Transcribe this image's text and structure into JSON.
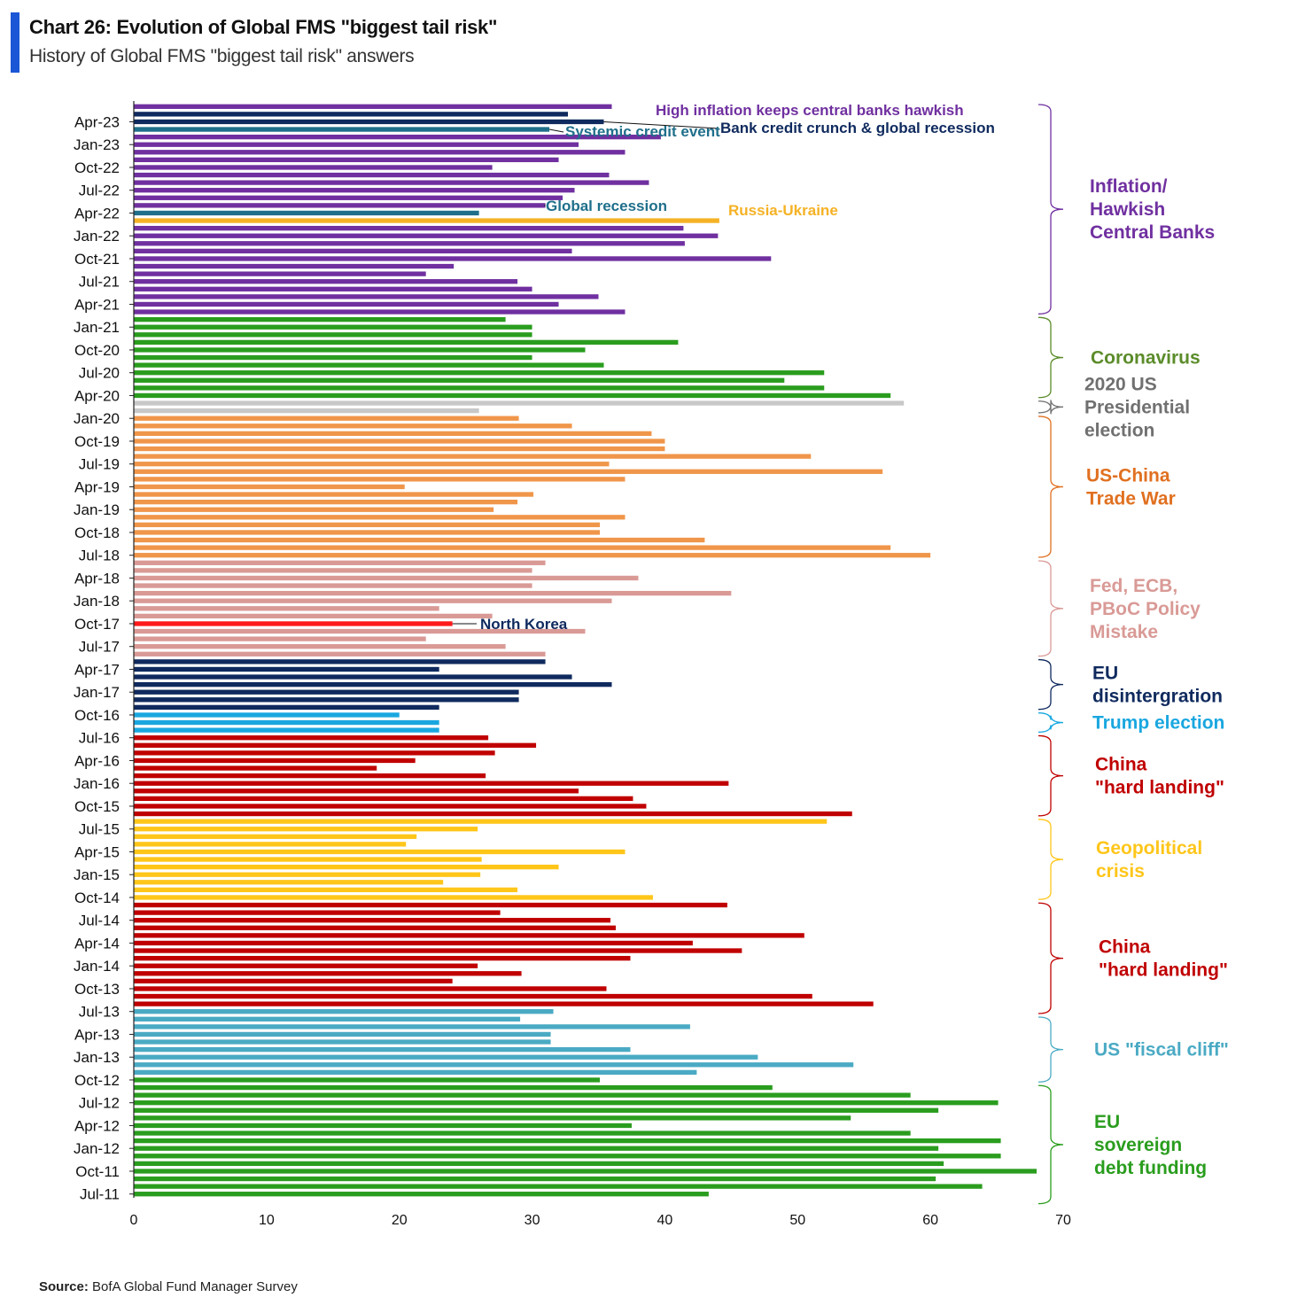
{
  "header": {
    "title": "Chart 26: Evolution of Global FMS \"biggest tail risk\"",
    "subtitle": "History of Global FMS \"biggest tail risk\" answers"
  },
  "footer": {
    "source_label": "Source:",
    "source_text": " BofA Global Fund Manager Survey"
  },
  "colors": {
    "inflation": "#7030a0",
    "navy": "#0f2a5e",
    "teal": "#1f6f8b",
    "russia": "#f5b225",
    "covid": "#2a9d1e",
    "election": "#c8c8c8",
    "tradewar": "#f0964a",
    "policy": "#d99a96",
    "northkorea": "#ff1a1a",
    "trump": "#1aa7e0",
    "china": "#c00000",
    "geo": "#ffc61a",
    "fiscal": "#4aaac4",
    "eu_debt": "#2a9d1e"
  },
  "chart_data": {
    "type": "bar",
    "orientation": "horizontal",
    "title": "Chart 26: Evolution of Global FMS \"biggest tail risk\"",
    "subtitle": "History of Global FMS \"biggest tail risk\" answers",
    "xlim": [
      0,
      70
    ],
    "x_ticks": [
      0,
      10,
      20,
      30,
      40,
      50,
      60,
      70
    ],
    "grid": false,
    "y_tick_labels": [
      "Apr-23",
      "Jan-23",
      "Oct-22",
      "Jul-22",
      "Apr-22",
      "Jan-22",
      "Oct-21",
      "Jul-21",
      "Apr-21",
      "Jan-21",
      "Oct-20",
      "Jul-20",
      "Apr-20",
      "Jan-20",
      "Oct-19",
      "Jul-19",
      "Apr-19",
      "Jan-19",
      "Oct-18",
      "Jul-18",
      "Apr-18",
      "Jan-18",
      "Oct-17",
      "Jul-17",
      "Apr-17",
      "Jan-17",
      "Oct-16",
      "Jul-16",
      "Apr-16",
      "Jan-16",
      "Oct-15",
      "Jul-15",
      "Apr-15",
      "Jan-15",
      "Oct-14",
      "Jul-14",
      "Apr-14",
      "Jan-14",
      "Oct-13",
      "Jul-13",
      "Apr-13",
      "Jan-13",
      "Oct-12",
      "Jul-12",
      "Apr-12",
      "Jan-12",
      "Oct-11",
      "Jul-11"
    ],
    "bars": [
      {
        "v": 36.0,
        "c": "inflation"
      },
      {
        "v": 32.7,
        "c": "navy"
      },
      {
        "v": 35.4,
        "c": "navy"
      },
      {
        "v": 31.3,
        "c": "teal"
      },
      {
        "v": 39.7,
        "c": "inflation"
      },
      {
        "v": 33.5,
        "c": "inflation"
      },
      {
        "v": 37.0,
        "c": "inflation"
      },
      {
        "v": 32.0,
        "c": "inflation"
      },
      {
        "v": 27.0,
        "c": "inflation"
      },
      {
        "v": 35.8,
        "c": "inflation"
      },
      {
        "v": 38.8,
        "c": "inflation"
      },
      {
        "v": 33.2,
        "c": "inflation"
      },
      {
        "v": 32.3,
        "c": "inflation"
      },
      {
        "v": 31.0,
        "c": "inflation"
      },
      {
        "v": 26.0,
        "c": "teal"
      },
      {
        "v": 44.1,
        "c": "russia"
      },
      {
        "v": 41.4,
        "c": "inflation"
      },
      {
        "v": 44.0,
        "c": "inflation"
      },
      {
        "v": 41.5,
        "c": "inflation"
      },
      {
        "v": 33.0,
        "c": "inflation"
      },
      {
        "v": 48.0,
        "c": "inflation"
      },
      {
        "v": 24.1,
        "c": "inflation"
      },
      {
        "v": 22.0,
        "c": "inflation"
      },
      {
        "v": 28.9,
        "c": "inflation"
      },
      {
        "v": 30.0,
        "c": "inflation"
      },
      {
        "v": 35.0,
        "c": "inflation"
      },
      {
        "v": 32.0,
        "c": "inflation"
      },
      {
        "v": 37.0,
        "c": "inflation"
      },
      {
        "v": 28.0,
        "c": "covid"
      },
      {
        "v": 30.0,
        "c": "covid"
      },
      {
        "v": 30.0,
        "c": "covid"
      },
      {
        "v": 41.0,
        "c": "covid"
      },
      {
        "v": 34.0,
        "c": "covid"
      },
      {
        "v": 30.0,
        "c": "covid"
      },
      {
        "v": 35.4,
        "c": "covid"
      },
      {
        "v": 52.0,
        "c": "covid"
      },
      {
        "v": 49.0,
        "c": "covid"
      },
      {
        "v": 52.0,
        "c": "covid"
      },
      {
        "v": 57.0,
        "c": "covid"
      },
      {
        "v": 58.0,
        "c": "election"
      },
      {
        "v": 26.0,
        "c": "election"
      },
      {
        "v": 29.0,
        "c": "tradewar"
      },
      {
        "v": 33.0,
        "c": "tradewar"
      },
      {
        "v": 39.0,
        "c": "tradewar"
      },
      {
        "v": 40.0,
        "c": "tradewar"
      },
      {
        "v": 40.0,
        "c": "tradewar"
      },
      {
        "v": 51.0,
        "c": "tradewar"
      },
      {
        "v": 35.8,
        "c": "tradewar"
      },
      {
        "v": 56.4,
        "c": "tradewar"
      },
      {
        "v": 37.0,
        "c": "tradewar"
      },
      {
        "v": 20.4,
        "c": "tradewar"
      },
      {
        "v": 30.1,
        "c": "tradewar"
      },
      {
        "v": 28.9,
        "c": "tradewar"
      },
      {
        "v": 27.1,
        "c": "tradewar"
      },
      {
        "v": 37.0,
        "c": "tradewar"
      },
      {
        "v": 35.1,
        "c": "tradewar"
      },
      {
        "v": 35.1,
        "c": "tradewar"
      },
      {
        "v": 43.0,
        "c": "tradewar"
      },
      {
        "v": 57.0,
        "c": "tradewar"
      },
      {
        "v": 60.0,
        "c": "tradewar"
      },
      {
        "v": 31.0,
        "c": "policy"
      },
      {
        "v": 30.0,
        "c": "policy"
      },
      {
        "v": 38.0,
        "c": "policy"
      },
      {
        "v": 30.0,
        "c": "policy"
      },
      {
        "v": 45.0,
        "c": "policy"
      },
      {
        "v": 36.0,
        "c": "policy"
      },
      {
        "v": 23.0,
        "c": "policy"
      },
      {
        "v": 27.0,
        "c": "policy"
      },
      {
        "v": 24.0,
        "c": "northkorea"
      },
      {
        "v": 34.0,
        "c": "policy"
      },
      {
        "v": 22.0,
        "c": "policy"
      },
      {
        "v": 28.0,
        "c": "policy"
      },
      {
        "v": 31.0,
        "c": "policy"
      },
      {
        "v": 31.0,
        "c": "navy"
      },
      {
        "v": 23.0,
        "c": "navy"
      },
      {
        "v": 33.0,
        "c": "navy"
      },
      {
        "v": 36.0,
        "c": "navy"
      },
      {
        "v": 29.0,
        "c": "navy"
      },
      {
        "v": 29.0,
        "c": "navy"
      },
      {
        "v": 23.0,
        "c": "navy"
      },
      {
        "v": 20.0,
        "c": "trump"
      },
      {
        "v": 23.0,
        "c": "trump"
      },
      {
        "v": 23.0,
        "c": "trump"
      },
      {
        "v": 26.7,
        "c": "china"
      },
      {
        "v": 30.3,
        "c": "china"
      },
      {
        "v": 27.2,
        "c": "china"
      },
      {
        "v": 21.2,
        "c": "china"
      },
      {
        "v": 18.3,
        "c": "china"
      },
      {
        "v": 26.5,
        "c": "china"
      },
      {
        "v": 44.8,
        "c": "china"
      },
      {
        "v": 33.5,
        "c": "china"
      },
      {
        "v": 37.6,
        "c": "china"
      },
      {
        "v": 38.6,
        "c": "china"
      },
      {
        "v": 54.1,
        "c": "china"
      },
      {
        "v": 52.2,
        "c": "geo"
      },
      {
        "v": 25.9,
        "c": "geo"
      },
      {
        "v": 21.3,
        "c": "geo"
      },
      {
        "v": 20.5,
        "c": "geo"
      },
      {
        "v": 37.0,
        "c": "geo"
      },
      {
        "v": 26.2,
        "c": "geo"
      },
      {
        "v": 32.0,
        "c": "geo"
      },
      {
        "v": 26.1,
        "c": "geo"
      },
      {
        "v": 23.3,
        "c": "geo"
      },
      {
        "v": 28.9,
        "c": "geo"
      },
      {
        "v": 39.1,
        "c": "geo"
      },
      {
        "v": 44.7,
        "c": "china"
      },
      {
        "v": 27.6,
        "c": "china"
      },
      {
        "v": 35.9,
        "c": "china"
      },
      {
        "v": 36.3,
        "c": "china"
      },
      {
        "v": 50.5,
        "c": "china"
      },
      {
        "v": 42.1,
        "c": "china"
      },
      {
        "v": 45.8,
        "c": "china"
      },
      {
        "v": 37.4,
        "c": "china"
      },
      {
        "v": 25.9,
        "c": "china"
      },
      {
        "v": 29.2,
        "c": "china"
      },
      {
        "v": 24.0,
        "c": "china"
      },
      {
        "v": 35.6,
        "c": "china"
      },
      {
        "v": 51.1,
        "c": "china"
      },
      {
        "v": 55.7,
        "c": "china"
      },
      {
        "v": 31.6,
        "c": "fiscal"
      },
      {
        "v": 29.1,
        "c": "fiscal"
      },
      {
        "v": 41.9,
        "c": "fiscal"
      },
      {
        "v": 31.4,
        "c": "fiscal"
      },
      {
        "v": 31.4,
        "c": "fiscal"
      },
      {
        "v": 37.4,
        "c": "fiscal"
      },
      {
        "v": 47.0,
        "c": "fiscal"
      },
      {
        "v": 54.2,
        "c": "fiscal"
      },
      {
        "v": 42.4,
        "c": "fiscal"
      },
      {
        "v": 35.1,
        "c": "eu_debt"
      },
      {
        "v": 48.1,
        "c": "eu_debt"
      },
      {
        "v": 58.5,
        "c": "eu_debt"
      },
      {
        "v": 65.1,
        "c": "eu_debt"
      },
      {
        "v": 60.6,
        "c": "eu_debt"
      },
      {
        "v": 54.0,
        "c": "eu_debt"
      },
      {
        "v": 37.5,
        "c": "eu_debt"
      },
      {
        "v": 58.5,
        "c": "eu_debt"
      },
      {
        "v": 65.3,
        "c": "eu_debt"
      },
      {
        "v": 60.6,
        "c": "eu_debt"
      },
      {
        "v": 65.3,
        "c": "eu_debt"
      },
      {
        "v": 61.0,
        "c": "eu_debt"
      },
      {
        "v": 68.0,
        "c": "eu_debt"
      },
      {
        "v": 60.4,
        "c": "eu_debt"
      },
      {
        "v": 63.9,
        "c": "eu_debt"
      },
      {
        "v": 43.3,
        "c": "eu_debt"
      }
    ],
    "annotations": [
      {
        "text": "High inflation keeps central banks hawkish",
        "c": "inflation",
        "bar": 0
      },
      {
        "text": "Bank credit crunch & global recession",
        "c": "navy",
        "bar": 2
      },
      {
        "text": "Systemic credit event",
        "c": "teal",
        "bar": 3
      },
      {
        "text": "Global recession",
        "c": "teal",
        "bar": 14
      },
      {
        "text": "Russia-Ukraine",
        "c": "russia",
        "bar": 15
      },
      {
        "text": "North Korea",
        "c": "navy",
        "bar": 68
      }
    ],
    "groups": [
      {
        "lines": [
          "Inflation/",
          "Hawkish",
          "Central Banks"
        ],
        "c": "inflation",
        "from": 0,
        "to": 27
      },
      {
        "lines": [
          "Coronavirus"
        ],
        "c": "#5b8c2a",
        "from": 28,
        "to": 38
      },
      {
        "lines": [
          "2020 US",
          "Presidential",
          "election"
        ],
        "c": "#707070",
        "from": 39,
        "to": 40
      },
      {
        "lines": [
          "US-China",
          "Trade War"
        ],
        "c": "#e07020",
        "from": 41,
        "to": 59
      },
      {
        "lines": [
          "Fed, ECB,",
          "PBoC Policy",
          "Mistake"
        ],
        "c": "policy",
        "from": 60,
        "to": 72
      },
      {
        "lines": [
          "EU",
          "disintergration"
        ],
        "c": "navy",
        "from": 73,
        "to": 79
      },
      {
        "lines": [
          "Trump election"
        ],
        "c": "trump",
        "from": 80,
        "to": 82
      },
      {
        "lines": [
          "China",
          "\"hard landing\""
        ],
        "c": "china",
        "from": 83,
        "to": 93
      },
      {
        "lines": [
          "Geopolitical",
          "crisis"
        ],
        "c": "geo",
        "from": 94,
        "to": 104
      },
      {
        "lines": [
          "China",
          "\"hard landing\""
        ],
        "c": "china",
        "from": 105,
        "to": 119
      },
      {
        "lines": [
          "US \"fiscal cliff\""
        ],
        "c": "fiscal",
        "from": 120,
        "to": 128
      },
      {
        "lines": [
          "EU",
          "sovereign",
          "debt funding"
        ],
        "c": "eu_debt",
        "from": 129,
        "to": 144
      }
    ]
  }
}
